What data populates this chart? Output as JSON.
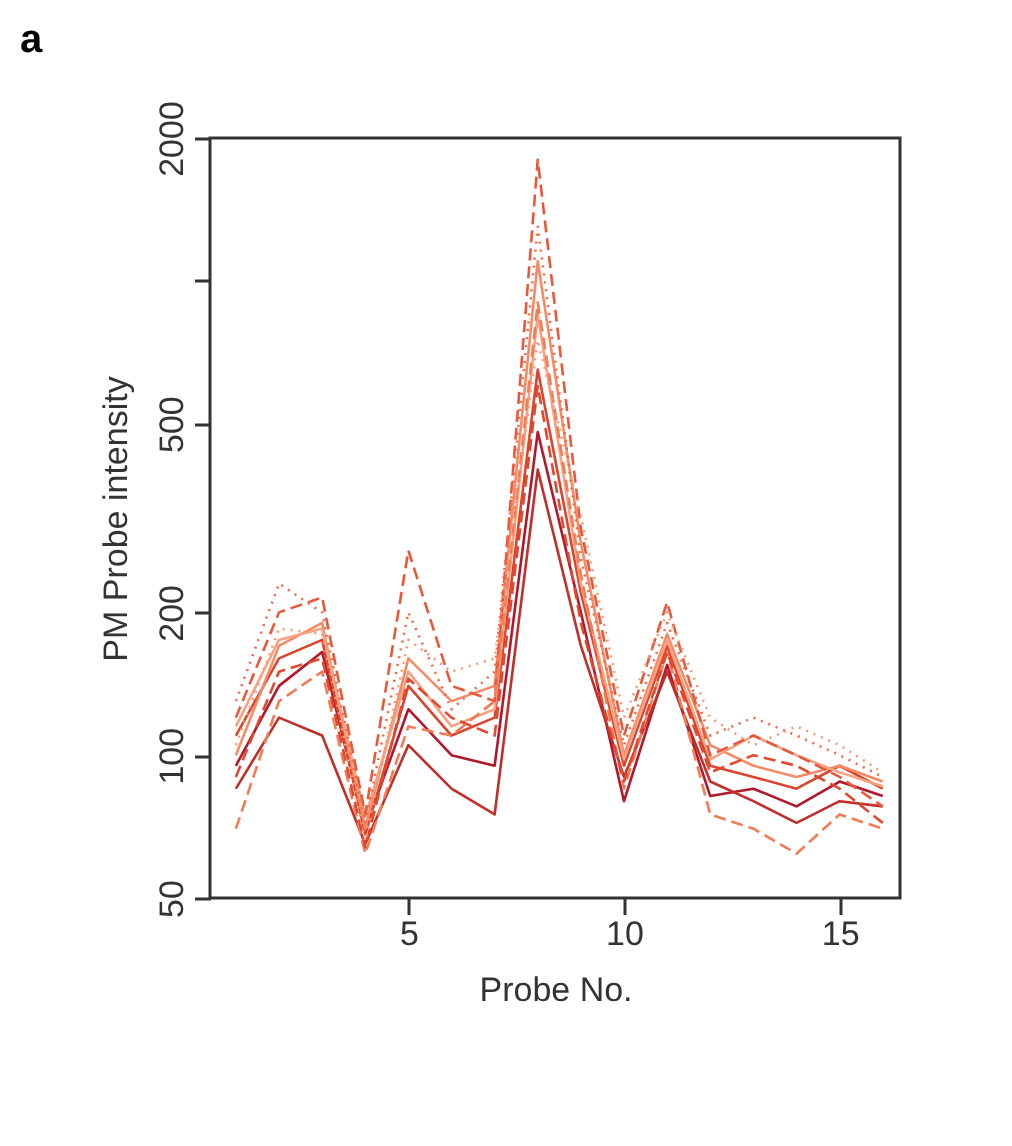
{
  "chart_data": {
    "type": "line",
    "title": "a",
    "xlabel": "Probe No.",
    "ylabel": "PM Probe intensity",
    "x": [
      1,
      2,
      3,
      4,
      5,
      6,
      7,
      8,
      9,
      10,
      11,
      12,
      13,
      14,
      15,
      16
    ],
    "xlim": [
      0.4,
      16.4
    ],
    "xticks": [
      5,
      10,
      15
    ],
    "ylim": [
      50,
      2000
    ],
    "yticks": [
      50,
      100,
      200,
      500,
      {
        "value": 1000,
        "label": null
      },
      2000
    ],
    "log": true,
    "grid": false,
    "legend": false,
    "marker": "none",
    "series": [
      {
        "color": "#b2182b",
        "line_style": "solid",
        "values": [
          95,
          140,
          165,
          70,
          125,
          100,
          95,
          480,
          200,
          80,
          155,
          82,
          85,
          78,
          88,
          82
        ]
      },
      {
        "color": "#c0302a",
        "line_style": "solid",
        "values": [
          85,
          120,
          110,
          65,
          105,
          85,
          75,
          400,
          170,
          90,
          150,
          88,
          80,
          72,
          80,
          78
        ]
      },
      {
        "color": "#d9452e",
        "line_style": "solid",
        "values": [
          110,
          160,
          175,
          68,
          140,
          110,
          120,
          650,
          220,
          95,
          170,
          95,
          90,
          85,
          95,
          85
        ]
      },
      {
        "color": "#e8583a",
        "line_style": "dashed",
        "values": [
          120,
          200,
          215,
          75,
          270,
          140,
          130,
          1800,
          300,
          110,
          210,
          100,
          110,
          100,
          90,
          78
        ]
      },
      {
        "color": "#ef6a48",
        "line_style": "dotted",
        "values": [
          130,
          230,
          200,
          72,
          200,
          125,
          150,
          1300,
          260,
          105,
          190,
          110,
          120,
          110,
          100,
          90
        ]
      },
      {
        "color": "#f27c56",
        "line_style": "dashed",
        "values": [
          70,
          130,
          150,
          62,
          115,
          110,
          130,
          900,
          240,
          85,
          165,
          75,
          70,
          62,
          75,
          70
        ]
      },
      {
        "color": "#f48b66",
        "line_style": "solid",
        "values": [
          100,
          170,
          190,
          70,
          160,
          130,
          140,
          1100,
          280,
          100,
          180,
          105,
          95,
          90,
          95,
          88
        ]
      },
      {
        "color": "#f69a77",
        "line_style": "dotted",
        "values": [
          105,
          185,
          180,
          66,
          175,
          150,
          160,
          750,
          320,
          120,
          200,
          120,
          105,
          115,
          105,
          92
        ]
      },
      {
        "color": "#e0492f",
        "line_style": "dashed",
        "values": [
          90,
          150,
          160,
          64,
          145,
          120,
          110,
          600,
          190,
          88,
          165,
          92,
          100,
          95,
          85,
          72
        ]
      },
      {
        "color": "#f7a282",
        "line_style": "solid",
        "values": [
          115,
          175,
          185,
          74,
          150,
          115,
          125,
          850,
          230,
          98,
          175,
          98,
          110,
          100,
          92,
          86
        ]
      }
    ]
  }
}
